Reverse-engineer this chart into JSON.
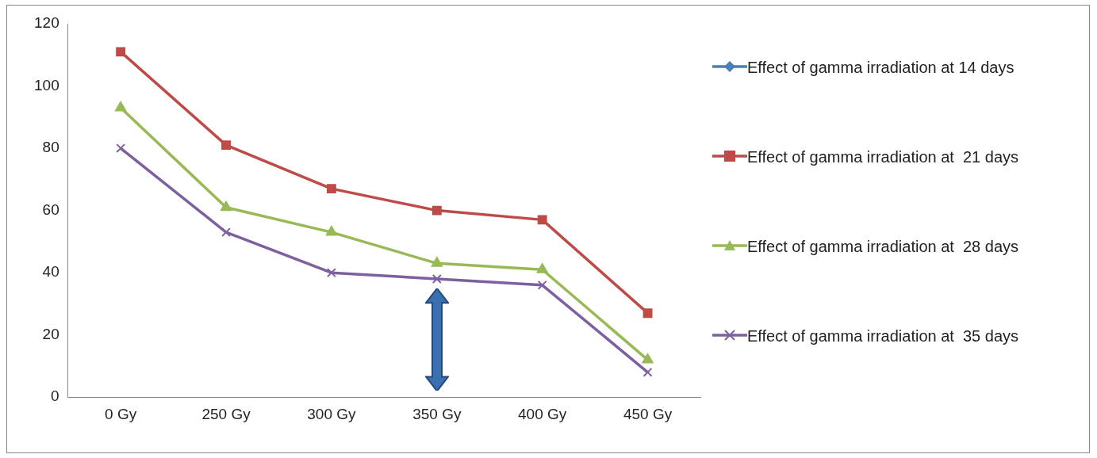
{
  "chart_data": {
    "type": "line",
    "categories": [
      "0 Gy",
      "250 Gy",
      "300 Gy",
      "350 Gy",
      "400 Gy",
      "450 Gy"
    ],
    "ylim": [
      0,
      120
    ],
    "yticks": [
      0,
      20,
      40,
      60,
      80,
      100,
      120
    ],
    "grid": false,
    "legend": "right",
    "series": [
      {
        "name": "Effect of gamma irradiation at 14 days",
        "color": "#4a7ebb",
        "marker": "diamond",
        "values": [
          null,
          null,
          null,
          null,
          null,
          null
        ]
      },
      {
        "name": "Effect of gamma irradiation at  21 days",
        "color": "#be4b48",
        "marker": "square",
        "values": [
          111,
          81,
          67,
          60,
          57,
          27
        ]
      },
      {
        "name": "Effect of gamma irradiation at  28 days",
        "color": "#98b954",
        "marker": "triangle",
        "values": [
          93,
          61,
          53,
          43,
          41,
          12
        ]
      },
      {
        "name": "Effect of gamma irradiation at  35 days",
        "color": "#7d60a0",
        "marker": "cross",
        "values": [
          80,
          53,
          40,
          38,
          36,
          8
        ]
      }
    ]
  }
}
